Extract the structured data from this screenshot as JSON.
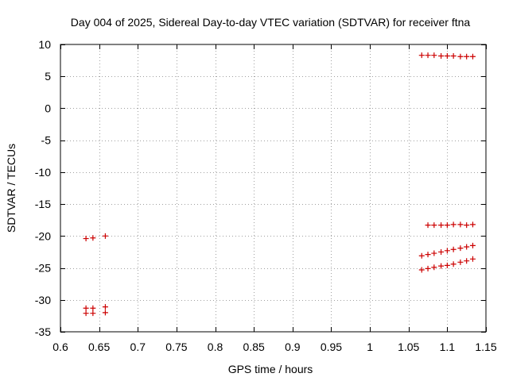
{
  "chart_data": {
    "type": "scatter",
    "title": "Day 004 of 2025, Sidereal Day-to-day VTEC variation (SDTVAR) for receiver ftna",
    "xlabel": "GPS time / hours",
    "ylabel": "SDTVAR / TECUs",
    "xlim": [
      0.6,
      1.15
    ],
    "ylim": [
      -35,
      10
    ],
    "xticks": [
      "0.6",
      "0.65",
      "0.7",
      "0.75",
      "0.8",
      "0.85",
      "0.9",
      "0.95",
      "1",
      "1.05",
      "1.1",
      "1.15"
    ],
    "xtick_values": [
      0.6,
      0.65,
      0.7,
      0.75,
      0.8,
      0.85,
      0.9,
      0.95,
      1.0,
      1.05,
      1.1,
      1.15
    ],
    "yticks": [
      "10",
      "5",
      "0",
      "-5",
      "-10",
      "-15",
      "-20",
      "-25",
      "-30",
      "-35"
    ],
    "ytick_values": [
      10,
      5,
      0,
      -5,
      -10,
      -15,
      -20,
      -25,
      -30,
      -35
    ],
    "grid": true,
    "marker": "+",
    "color": "#cc0000",
    "series": [
      {
        "name": "SDTVAR",
        "x": [
          0.633,
          0.642,
          0.658,
          0.633,
          0.642,
          0.658,
          0.633,
          0.642,
          0.658,
          1.067,
          1.075,
          1.083,
          1.092,
          1.1,
          1.108,
          1.117,
          1.125,
          1.133,
          1.075,
          1.083,
          1.092,
          1.1,
          1.108,
          1.117,
          1.125,
          1.133,
          1.067,
          1.075,
          1.083,
          1.092,
          1.1,
          1.108,
          1.117,
          1.125,
          1.133,
          1.067,
          1.075,
          1.083,
          1.092,
          1.1,
          1.108,
          1.117,
          1.125,
          1.133
        ],
        "y": [
          -20.4,
          -20.3,
          -20.0,
          -31.3,
          -31.3,
          -31.1,
          -32.1,
          -32.1,
          -32.0,
          8.3,
          8.3,
          8.3,
          8.2,
          8.2,
          8.2,
          8.1,
          8.1,
          8.1,
          -18.3,
          -18.3,
          -18.3,
          -18.3,
          -18.2,
          -18.2,
          -18.3,
          -18.2,
          -23.1,
          -22.9,
          -22.7,
          -22.5,
          -22.3,
          -22.1,
          -21.9,
          -21.7,
          -21.5,
          -25.3,
          -25.1,
          -24.9,
          -24.7,
          -24.6,
          -24.4,
          -24.1,
          -23.9,
          -23.6
        ]
      }
    ]
  }
}
